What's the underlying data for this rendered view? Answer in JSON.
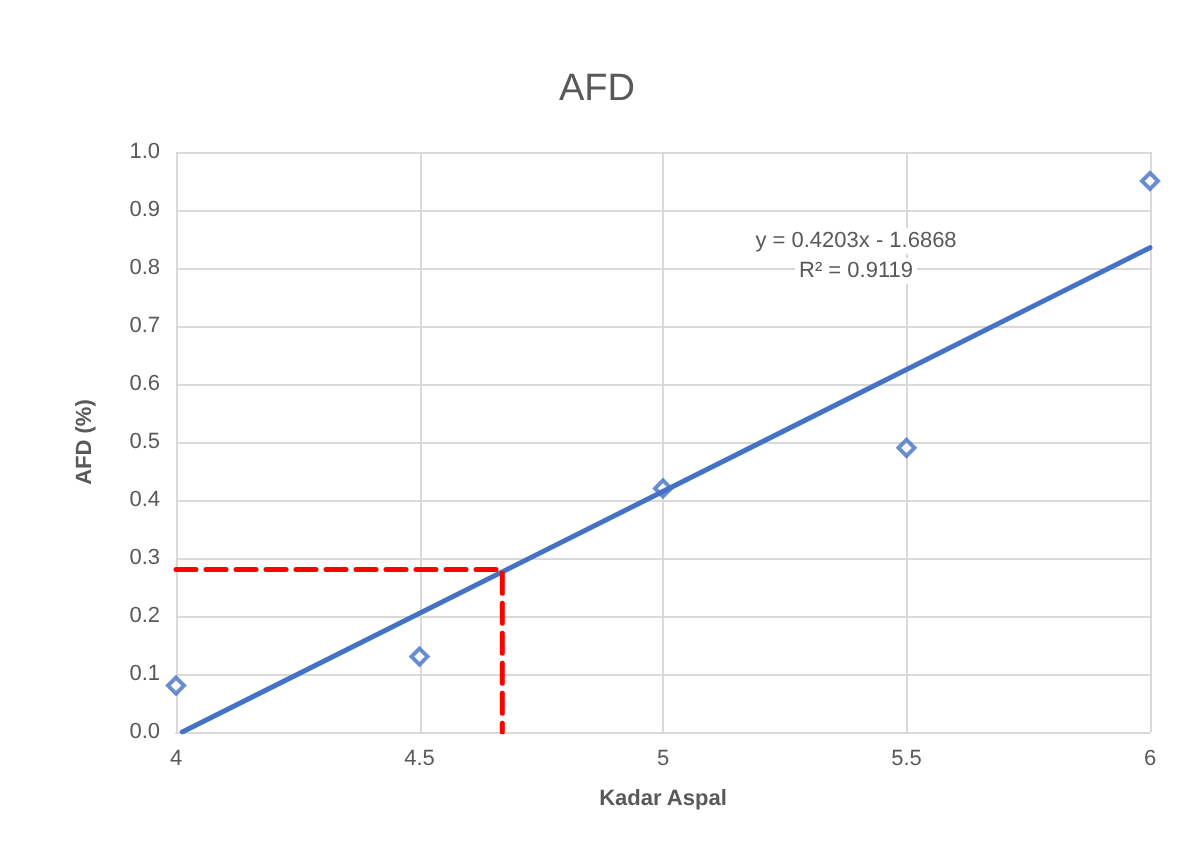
{
  "chart_data": {
    "type": "scatter",
    "title": "AFD",
    "xlabel": "Kadar Aspal",
    "ylabel": "AFD (%)",
    "xlim": [
      4,
      6
    ],
    "xticks": [
      4,
      4.5,
      5,
      5.5,
      6
    ],
    "ylim": [
      0,
      1.0
    ],
    "yticks": [
      {
        "value": 0,
        "label": "0.0"
      },
      0.1,
      0.2,
      0.3,
      0.4,
      0.5,
      0.6,
      0.7,
      0.8,
      0.9,
      {
        "value": 1,
        "label": "1.0"
      }
    ],
    "grid": true,
    "marker": "diamond",
    "series": [
      {
        "color": "#4472c4",
        "x": [
          4,
          4.5,
          5,
          5.5,
          6
        ],
        "values": [
          0.08,
          0.13,
          0.42,
          0.49,
          0.95
        ]
      },
      {
        "type": "line",
        "color": "#4472c4",
        "marker": "none",
        "line_style": "solid",
        "x": [
          4.013,
          6
        ],
        "values": [
          0,
          0.835
        ]
      },
      {
        "type": "line",
        "color": "#ff0000",
        "marker": "none",
        "line_style": "dashed",
        "x": [
          4,
          4.67,
          4.67
        ],
        "values": [
          0.28,
          0.28,
          0
        ]
      }
    ],
    "annotations": [
      "y = 0.4203x - 1.6868",
      "R² = 0.9119"
    ]
  }
}
